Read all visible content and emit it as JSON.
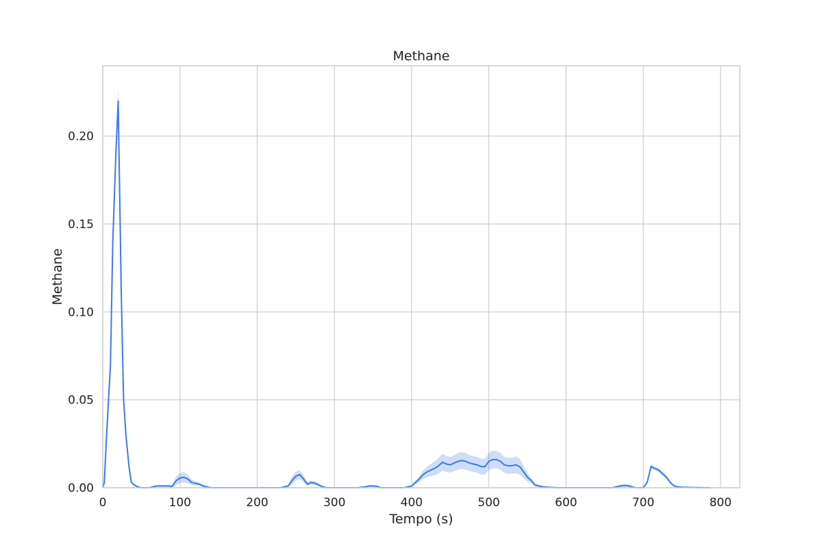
{
  "chart_data": {
    "type": "line",
    "title": "Methane",
    "xlabel": "Tempo (s)",
    "ylabel": "Methane",
    "xlim": [
      0,
      825
    ],
    "ylim": [
      0,
      0.24
    ],
    "x_ticks": [
      0,
      100,
      200,
      300,
      400,
      500,
      600,
      700,
      800
    ],
    "x_tick_labels": [
      "0",
      "100",
      "200",
      "300",
      "400",
      "500",
      "600",
      "700",
      "800"
    ],
    "y_ticks": [
      0.0,
      0.05,
      0.1,
      0.15,
      0.2
    ],
    "y_tick_labels": [
      "0.00",
      "0.05",
      "0.10",
      "0.15",
      "0.20"
    ],
    "grid": true,
    "colors": {
      "line": "#3b78e7",
      "band": "#3b78e7",
      "grid": "#cccccc",
      "spine": "#cccccc"
    },
    "series": [
      {
        "x": [
          0,
          2,
          5,
          10,
          13,
          17,
          20,
          24,
          27,
          30,
          34,
          37,
          41,
          45,
          50,
          55,
          60,
          65,
          70,
          75,
          80,
          85,
          90,
          95,
          100,
          105,
          110,
          115,
          120,
          125,
          130,
          135,
          140,
          150,
          160,
          170,
          180,
          190,
          200,
          210,
          220,
          230,
          235,
          240,
          245,
          250,
          255,
          260,
          265,
          270,
          275,
          280,
          285,
          290,
          300,
          310,
          320,
          330,
          340,
          345,
          350,
          355,
          360,
          370,
          380,
          390,
          395,
          400,
          405,
          410,
          415,
          420,
          425,
          430,
          435,
          440,
          445,
          450,
          455,
          460,
          465,
          470,
          475,
          480,
          485,
          490,
          495,
          500,
          505,
          510,
          515,
          520,
          525,
          530,
          535,
          540,
          545,
          550,
          555,
          560,
          570,
          580,
          590,
          600,
          620,
          640,
          650,
          660,
          665,
          670,
          675,
          680,
          685,
          690,
          695,
          700,
          705,
          710,
          715,
          720,
          725,
          730,
          735,
          740,
          745,
          750,
          760,
          770,
          780,
          787
        ],
        "y": [
          0.0,
          0.003,
          0.03,
          0.07,
          0.14,
          0.19,
          0.22,
          0.11,
          0.05,
          0.03,
          0.012,
          0.003,
          0.0015,
          0.0005,
          0.0,
          0.0,
          0.0,
          0.0005,
          0.001,
          0.001,
          0.001,
          0.001,
          0.0008,
          0.004,
          0.0055,
          0.006,
          0.005,
          0.003,
          0.0025,
          0.002,
          0.001,
          0.0005,
          0.0,
          0.0,
          0.0,
          0.0,
          0.0,
          0.0,
          0.0,
          0.0,
          0.0,
          0.0,
          0.0005,
          0.001,
          0.004,
          0.0065,
          0.0075,
          0.005,
          0.002,
          0.003,
          0.0025,
          0.0015,
          0.0005,
          0.0,
          0.0,
          0.0,
          0.0,
          0.0,
          0.0005,
          0.001,
          0.001,
          0.0008,
          0.0,
          0.0,
          0.0,
          0.0,
          0.0005,
          0.001,
          0.003,
          0.005,
          0.0075,
          0.009,
          0.01,
          0.011,
          0.0125,
          0.0145,
          0.0135,
          0.013,
          0.014,
          0.015,
          0.0155,
          0.015,
          0.014,
          0.0135,
          0.013,
          0.012,
          0.012,
          0.015,
          0.016,
          0.016,
          0.015,
          0.013,
          0.0125,
          0.0125,
          0.013,
          0.012,
          0.009,
          0.006,
          0.004,
          0.0015,
          0.0005,
          0.0002,
          0.0,
          0.0,
          0.0,
          0.0,
          0.0,
          0.0,
          0.0005,
          0.001,
          0.0012,
          0.0012,
          0.0005,
          0.0,
          0.0,
          0.0,
          0.003,
          0.012,
          0.011,
          0.01,
          0.008,
          0.006,
          0.003,
          0.001,
          0.0005,
          0.0003,
          0.0002,
          0.0001,
          0.0,
          0.0
        ],
        "ci": [
          0.0,
          0.0005,
          0.002,
          0.003,
          0.004,
          0.007,
          0.008,
          0.004,
          0.002,
          0.0015,
          0.001,
          0.0008,
          0.0005,
          0.0003,
          0.0,
          0.0,
          0.0,
          0.0003,
          0.0005,
          0.0005,
          0.0005,
          0.0005,
          0.0004,
          0.0025,
          0.0028,
          0.003,
          0.0025,
          0.0015,
          0.0012,
          0.001,
          0.0006,
          0.0003,
          0.0,
          0.0,
          0.0,
          0.0,
          0.0,
          0.0,
          0.0,
          0.0,
          0.0,
          0.0,
          0.0003,
          0.0006,
          0.0025,
          0.0025,
          0.0025,
          0.002,
          0.001,
          0.0012,
          0.0012,
          0.0008,
          0.0003,
          0.0,
          0.0,
          0.0,
          0.0,
          0.0,
          0.0003,
          0.0005,
          0.0005,
          0.0004,
          0.0,
          0.0,
          0.0,
          0.0,
          0.0003,
          0.0005,
          0.0012,
          0.0018,
          0.0025,
          0.003,
          0.0035,
          0.004,
          0.0045,
          0.0048,
          0.0045,
          0.0045,
          0.0045,
          0.0048,
          0.0048,
          0.0048,
          0.0045,
          0.0045,
          0.0045,
          0.0045,
          0.0045,
          0.0048,
          0.005,
          0.005,
          0.0048,
          0.0045,
          0.0045,
          0.0045,
          0.0048,
          0.0045,
          0.0035,
          0.0025,
          0.0015,
          0.0008,
          0.0003,
          0.0001,
          0.0,
          0.0,
          0.0,
          0.0,
          0.0,
          0.0,
          0.0003,
          0.0006,
          0.0008,
          0.0008,
          0.0004,
          0.0,
          0.0,
          0.0,
          0.001,
          0.0012,
          0.001,
          0.0012,
          0.0012,
          0.001,
          0.0008,
          0.0005,
          0.0003,
          0.0002,
          0.0001,
          0.0001,
          0.0,
          0.0
        ]
      }
    ]
  }
}
